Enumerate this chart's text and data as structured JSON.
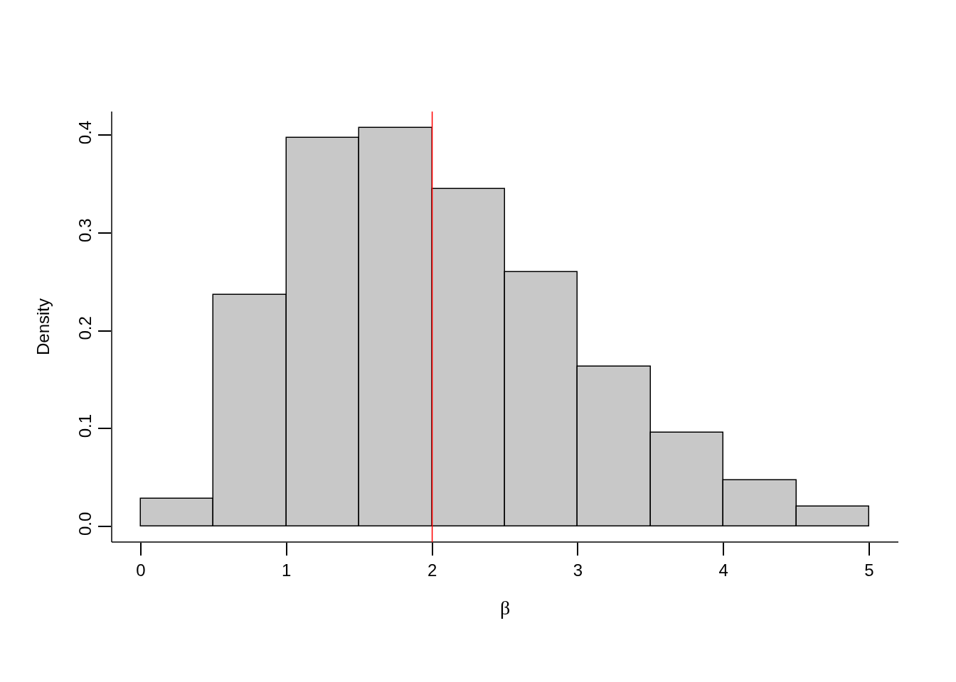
{
  "chart_data": {
    "type": "histogram",
    "xlabel": "β",
    "ylabel": "Density",
    "bins": [
      0,
      0.5,
      1,
      1.5,
      2,
      2.5,
      3,
      3.5,
      4,
      4.5,
      5
    ],
    "values": [
      0.028,
      0.237,
      0.397,
      0.407,
      0.345,
      0.26,
      0.163,
      0.096,
      0.047,
      0.02
    ],
    "color": "#c8c8c8",
    "xlim": [
      -0.2,
      5.2
    ],
    "xticks": [
      0,
      1,
      2,
      3,
      4,
      5
    ],
    "ylim": [
      -0.016,
      0.424
    ],
    "yticks": [
      {
        "value": 0,
        "label": "0.0"
      },
      0.1,
      0.2,
      0.3,
      0.4
    ],
    "ref_lines": [
      {
        "axis": "x",
        "value": 2,
        "color": "#ff0000"
      }
    ],
    "grid": false,
    "legend": false
  }
}
